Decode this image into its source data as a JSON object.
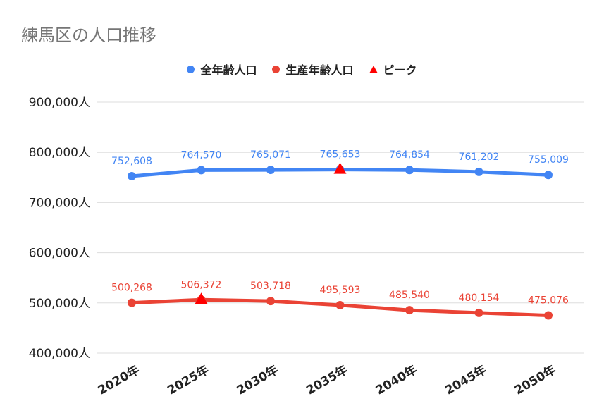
{
  "chart_data": {
    "type": "line",
    "title": "練馬区の人口推移",
    "categories": [
      "2020年",
      "2025年",
      "2030年",
      "2035年",
      "2040年",
      "2045年",
      "2050年"
    ],
    "ylim": [
      400000,
      900000
    ],
    "yticks": [
      "400,000人",
      "500,000人",
      "600,000人",
      "700,000人",
      "800,000人",
      "900,000人"
    ],
    "ytick_values": [
      400000,
      500000,
      600000,
      700000,
      800000,
      900000
    ],
    "grid": true,
    "legend_position": "top",
    "series": [
      {
        "name": "全年齢人口",
        "color": "#4285f4",
        "values": [
          752608,
          764570,
          765071,
          765653,
          764854,
          761202,
          755009
        ],
        "labels": [
          "752,608",
          "764,570",
          "765,071",
          "765,653",
          "764,854",
          "761,202",
          "755,009"
        ]
      },
      {
        "name": "生産年齢人口",
        "color": "#ea4335",
        "values": [
          500268,
          506372,
          503718,
          495593,
          485540,
          480154,
          475076
        ],
        "labels": [
          "500,268",
          "506,372",
          "503,718",
          "495,593",
          "485,540",
          "480,154",
          "475,076"
        ]
      }
    ],
    "peak": {
      "name": "ピーク",
      "color": "#ff0000",
      "points": [
        {
          "category": "2035年",
          "value": 765653
        },
        {
          "category": "2025年",
          "value": 506372
        }
      ]
    }
  }
}
